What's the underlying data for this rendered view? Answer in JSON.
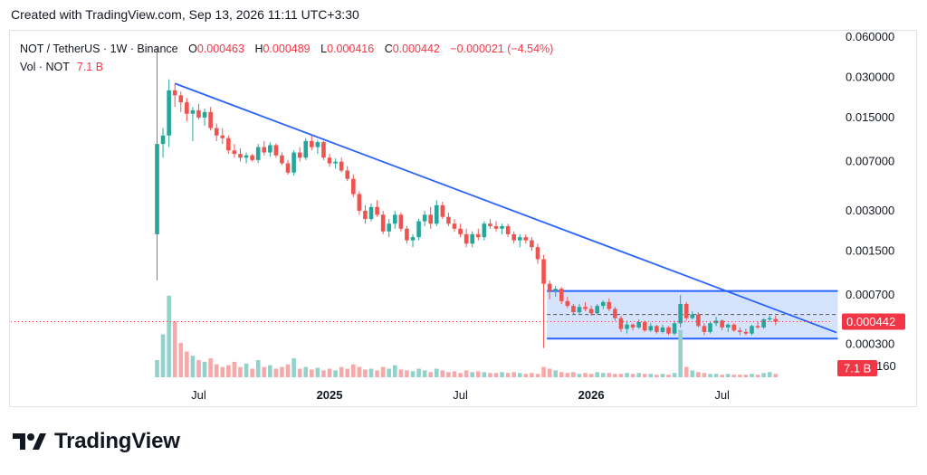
{
  "header": {
    "created": "Created with TradingView.com, Sep 13, 2026 11:11 UTC+3:30"
  },
  "legend": {
    "symbol": "NOT / TetherUS · 1W · Binance",
    "open_label": "O",
    "open": "0.000463",
    "high_label": "H",
    "high": "0.000489",
    "low_label": "L",
    "low": "0.000416",
    "close_label": "C",
    "close": "0.000442",
    "change": "−0.000021 (−4.54%)",
    "vol_label": "Vol · NOT",
    "vol_value": "7.1 B"
  },
  "brand": {
    "name": "TradingView"
  },
  "colors": {
    "up": "#26a69a",
    "down": "#ef5350",
    "trendline": "#2962ff",
    "box_fill": "#bbd0fa",
    "price_badge": "#f23645"
  },
  "chart_data": {
    "type": "candlestick",
    "scale": "log",
    "ylim": [
      0.00025,
      0.065
    ],
    "y_ticks": [
      "0.060000",
      "0.030000",
      "0.015000",
      "0.007000",
      "0.003000",
      "0.001500",
      "0.000700",
      "0.000300"
    ],
    "x_tick_labels": [
      "Jul",
      "2025",
      "Jul",
      "2026",
      "Jul"
    ],
    "last_price_label": "0.000442",
    "volume_label": "7.1 B",
    "volume_axis_fragment": "160",
    "series": [
      {
        "name": "NOT / TetherUS",
        "values": [
          [
            0.002,
            0.05,
            0.0009,
            0.0095
          ],
          [
            0.0095,
            0.0125,
            0.0075,
            0.011
          ],
          [
            0.011,
            0.029,
            0.009,
            0.024
          ],
          [
            0.024,
            0.027,
            0.018,
            0.022
          ],
          [
            0.022,
            0.0235,
            0.0165,
            0.0195
          ],
          [
            0.0195,
            0.021,
            0.014,
            0.016
          ],
          [
            0.016,
            0.018,
            0.01,
            0.017
          ],
          [
            0.017,
            0.019,
            0.0145,
            0.015
          ],
          [
            0.015,
            0.0175,
            0.013,
            0.0165
          ],
          [
            0.0165,
            0.018,
            0.012,
            0.0125
          ],
          [
            0.0125,
            0.0135,
            0.01,
            0.011
          ],
          [
            0.011,
            0.0125,
            0.0095,
            0.0105
          ],
          [
            0.0105,
            0.011,
            0.008,
            0.0085
          ],
          [
            0.0085,
            0.0095,
            0.0075,
            0.008
          ],
          [
            0.008,
            0.0088,
            0.007,
            0.0075
          ],
          [
            0.0075,
            0.0082,
            0.0068,
            0.0078
          ],
          [
            0.0078,
            0.008,
            0.007,
            0.0072
          ],
          [
            0.0072,
            0.0095,
            0.0068,
            0.009
          ],
          [
            0.009,
            0.01,
            0.0078,
            0.0082
          ],
          [
            0.0082,
            0.0098,
            0.0076,
            0.0093
          ],
          [
            0.0093,
            0.0096,
            0.0075,
            0.0078
          ],
          [
            0.0078,
            0.0082,
            0.0066,
            0.0068
          ],
          [
            0.0068,
            0.0072,
            0.0056,
            0.0058
          ],
          [
            0.0058,
            0.0085,
            0.0055,
            0.0082
          ],
          [
            0.0082,
            0.009,
            0.007,
            0.0075
          ],
          [
            0.0075,
            0.0105,
            0.0072,
            0.01
          ],
          [
            0.01,
            0.011,
            0.0085,
            0.009
          ],
          [
            0.009,
            0.0102,
            0.008,
            0.0098
          ],
          [
            0.0098,
            0.01,
            0.0072,
            0.0075
          ],
          [
            0.0075,
            0.008,
            0.0064,
            0.0068
          ],
          [
            0.0068,
            0.0074,
            0.0062,
            0.007
          ],
          [
            0.007,
            0.0075,
            0.0058,
            0.006
          ],
          [
            0.006,
            0.0065,
            0.005,
            0.0052
          ],
          [
            0.0052,
            0.0056,
            0.0038,
            0.004
          ],
          [
            0.004,
            0.0042,
            0.0028,
            0.003
          ],
          [
            0.003,
            0.0033,
            0.0024,
            0.0026
          ],
          [
            0.0026,
            0.0034,
            0.0025,
            0.0032
          ],
          [
            0.0032,
            0.0036,
            0.0027,
            0.0028
          ],
          [
            0.0028,
            0.003,
            0.002,
            0.0021
          ],
          [
            0.0021,
            0.0026,
            0.0019,
            0.0024
          ],
          [
            0.0024,
            0.003,
            0.0022,
            0.0028
          ],
          [
            0.0028,
            0.0029,
            0.0021,
            0.0022
          ],
          [
            0.0022,
            0.0023,
            0.0017,
            0.0018
          ],
          [
            0.0018,
            0.002,
            0.0016,
            0.0019
          ],
          [
            0.0019,
            0.0026,
            0.0018,
            0.0025
          ],
          [
            0.0025,
            0.003,
            0.0023,
            0.0028
          ],
          [
            0.0028,
            0.0032,
            0.0022,
            0.0024
          ],
          [
            0.0024,
            0.0036,
            0.0023,
            0.0033
          ],
          [
            0.0033,
            0.0035,
            0.0026,
            0.0027
          ],
          [
            0.0027,
            0.0029,
            0.0023,
            0.0024
          ],
          [
            0.0024,
            0.0026,
            0.0021,
            0.0022
          ],
          [
            0.0022,
            0.0024,
            0.0019,
            0.002
          ],
          [
            0.002,
            0.0022,
            0.0016,
            0.0017
          ],
          [
            0.0017,
            0.0021,
            0.0016,
            0.002
          ],
          [
            0.002,
            0.0022,
            0.0018,
            0.0019
          ],
          [
            0.0019,
            0.0025,
            0.0018,
            0.0024
          ],
          [
            0.0024,
            0.0026,
            0.0022,
            0.0023
          ],
          [
            0.0023,
            0.0025,
            0.0021,
            0.0022
          ],
          [
            0.0022,
            0.0024,
            0.002,
            0.0023
          ],
          [
            0.0023,
            0.0024,
            0.0019,
            0.002
          ],
          [
            0.002,
            0.0021,
            0.0017,
            0.0018
          ],
          [
            0.0018,
            0.002,
            0.0016,
            0.0019
          ],
          [
            0.0019,
            0.002,
            0.0017,
            0.0018
          ],
          [
            0.0018,
            0.0019,
            0.0015,
            0.0016
          ],
          [
            0.0016,
            0.0017,
            0.0012,
            0.0013
          ],
          [
            0.0013,
            0.0014,
            0.00028,
            0.00085
          ],
          [
            0.00085,
            0.0009,
            0.00065,
            0.00075
          ],
          [
            0.00075,
            0.00082,
            0.00068,
            0.00078
          ],
          [
            0.00078,
            0.0008,
            0.0006,
            0.00063
          ],
          [
            0.00063,
            0.00068,
            0.00056,
            0.00058
          ],
          [
            0.00058,
            0.0006,
            0.0005,
            0.00052
          ],
          [
            0.00052,
            0.0006,
            0.0005,
            0.00057
          ],
          [
            0.00057,
            0.00062,
            0.00053,
            0.00055
          ],
          [
            0.00055,
            0.00058,
            0.00049,
            0.00051
          ],
          [
            0.00051,
            0.0006,
            0.0005,
            0.00058
          ],
          [
            0.00058,
            0.00064,
            0.00055,
            0.00062
          ],
          [
            0.00062,
            0.00066,
            0.00053,
            0.00055
          ],
          [
            0.00055,
            0.00057,
            0.00045,
            0.00047
          ],
          [
            0.00047,
            0.00049,
            0.00037,
            0.00039
          ],
          [
            0.00039,
            0.00045,
            0.00036,
            0.00042
          ],
          [
            0.00042,
            0.00043,
            0.00038,
            0.0004
          ],
          [
            0.0004,
            0.00046,
            0.00039,
            0.00044
          ],
          [
            0.00044,
            0.00045,
            0.00037,
            0.00038
          ],
          [
            0.00038,
            0.00043,
            0.00037,
            0.00041
          ],
          [
            0.00041,
            0.00042,
            0.00036,
            0.00037
          ],
          [
            0.00037,
            0.00042,
            0.00036,
            0.0004
          ],
          [
            0.0004,
            0.00041,
            0.00035,
            0.00036
          ],
          [
            0.00036,
            0.00045,
            0.00035,
            0.00043
          ],
          [
            0.00043,
            0.0007,
            0.0004,
            0.0006
          ],
          [
            0.0006,
            0.00062,
            0.00045,
            0.00047
          ],
          [
            0.00047,
            0.00053,
            0.00046,
            0.0005
          ],
          [
            0.0005,
            0.00052,
            0.0004,
            0.00041
          ],
          [
            0.00041,
            0.00043,
            0.00035,
            0.00037
          ],
          [
            0.00037,
            0.00044,
            0.00036,
            0.00043
          ],
          [
            0.00043,
            0.00048,
            0.00041,
            0.00045
          ],
          [
            0.00045,
            0.00046,
            0.00038,
            0.0004
          ],
          [
            0.0004,
            0.00043,
            0.00037,
            0.00042
          ],
          [
            0.00042,
            0.00043,
            0.00037,
            0.00038
          ],
          [
            0.00038,
            0.0004,
            0.00035,
            0.00037
          ],
          [
            0.00037,
            0.00039,
            0.00035,
            0.00036
          ],
          [
            0.00036,
            0.00042,
            0.00035,
            0.00041
          ],
          [
            0.00041,
            0.00044,
            0.00039,
            0.0004
          ],
          [
            0.0004,
            0.00047,
            0.00039,
            0.00046
          ],
          [
            0.00046,
            0.00049,
            0.00044,
            0.00047
          ],
          [
            0.000463,
            0.000489,
            0.000416,
            0.000442
          ]
        ]
      }
    ],
    "volume": {
      "values": [
        0.2,
        0.5,
        0.95,
        0.65,
        0.4,
        0.3,
        0.25,
        0.2,
        0.18,
        0.22,
        0.15,
        0.12,
        0.14,
        0.18,
        0.12,
        0.16,
        0.1,
        0.2,
        0.12,
        0.14,
        0.1,
        0.12,
        0.15,
        0.22,
        0.1,
        0.12,
        0.09,
        0.11,
        0.08,
        0.1,
        0.08,
        0.12,
        0.1,
        0.15,
        0.12,
        0.09,
        0.1,
        0.08,
        0.12,
        0.1,
        0.14,
        0.09,
        0.08,
        0.07,
        0.1,
        0.08,
        0.06,
        0.1,
        0.08,
        0.06,
        0.07,
        0.05,
        0.08,
        0.06,
        0.07,
        0.06,
        0.05,
        0.05,
        0.06,
        0.05,
        0.06,
        0.05,
        0.04,
        0.05,
        0.04,
        0.12,
        0.1,
        0.08,
        0.06,
        0.05,
        0.06,
        0.04,
        0.05,
        0.04,
        0.06,
        0.05,
        0.05,
        0.04,
        0.04,
        0.05,
        0.04,
        0.05,
        0.04,
        0.04,
        0.03,
        0.04,
        0.03,
        0.05,
        0.55,
        0.12,
        0.08,
        0.06,
        0.05,
        0.04,
        0.04,
        0.03,
        0.04,
        0.03,
        0.03,
        0.03,
        0.04,
        0.03,
        0.05,
        0.06,
        0.04
      ]
    },
    "x_tick_positions": [
      7,
      29,
      51,
      73,
      95
    ],
    "trendline": {
      "from": [
        3,
        0.027
      ],
      "to": [
        114,
        0.00037
      ]
    },
    "range_box": {
      "x": [
        66,
        114
      ],
      "top": 0.00075,
      "bottom": 0.00033,
      "mid": 0.0005
    }
  }
}
